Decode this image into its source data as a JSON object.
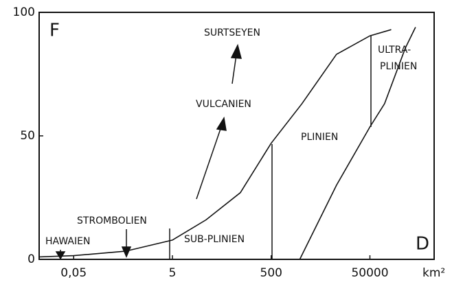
{
  "chart_data": {
    "type": "line",
    "log_x": true,
    "ylabel": "F",
    "xlabel": "D",
    "xunit": "km²",
    "xlim": [
      0.01,
      1000000
    ],
    "ylim": [
      0,
      100
    ],
    "xticks": [
      {
        "value": 0.05,
        "label": "0,05"
      },
      5,
      500,
      50000
    ],
    "yticks": [
      0,
      50,
      100
    ],
    "series": [
      {
        "color": "#111111",
        "x": [
          0.01,
          0.05,
          0.56,
          5,
          24,
          119,
          500,
          2100,
          10500,
          50000,
          135000
        ],
        "values": [
          1,
          1.5,
          3.3,
          7.8,
          16,
          27,
          47,
          63,
          83,
          90.5,
          93
        ]
      },
      {
        "color": "#111111",
        "x": [
          1900,
          10500,
          50000,
          99000,
          260000,
          420000
        ],
        "values": [
          0,
          30,
          53.6,
          63,
          85.5,
          94
        ]
      }
    ],
    "annotations": {
      "hawaien": "HAWAIEN",
      "strombolien": "STROMBOLIEN",
      "sub_plinien": "SUB-PLINIEN",
      "vulcanien": "VULCANIEN",
      "surtseyen": "SURTSEYEN",
      "plinien": "PLINIEN",
      "ultra_plinien": [
        "ULTRA-",
        "PLINIEN"
      ]
    }
  }
}
